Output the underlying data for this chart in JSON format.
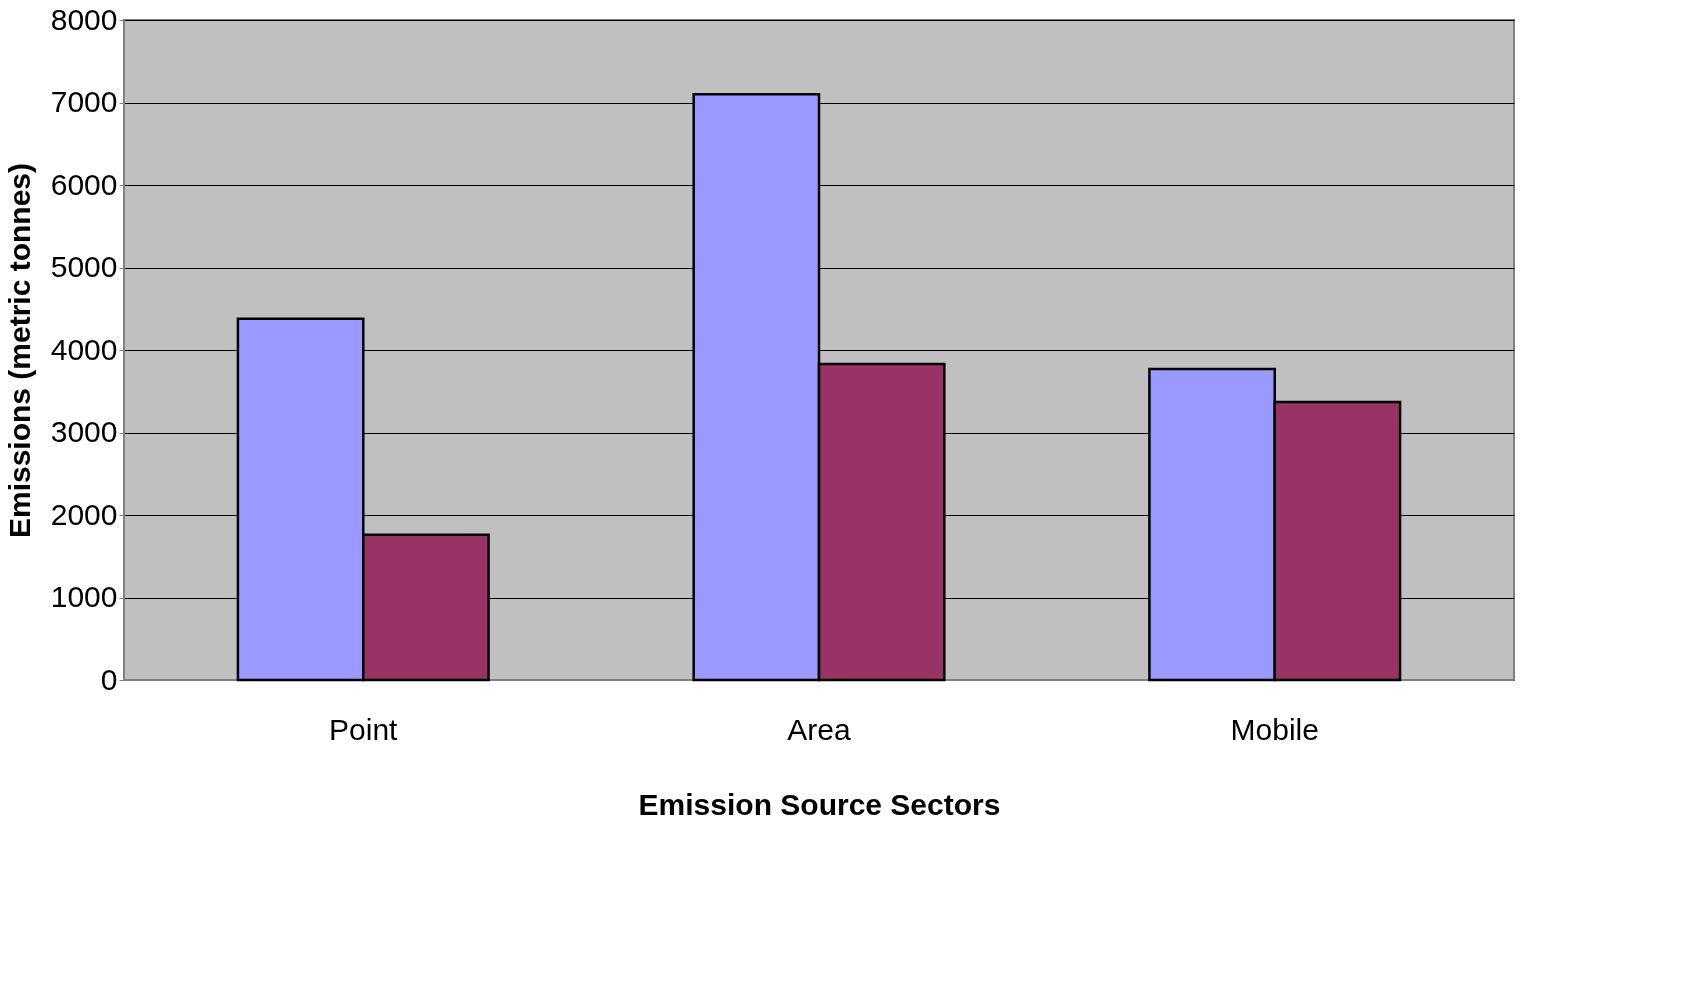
{
  "chart_data": {
    "type": "bar",
    "xlabel": "Emission Source Sectors",
    "ylabel": "Emissions (metric tonnes)",
    "categories": [
      "Point",
      "Area",
      "Mobile"
    ],
    "series": [
      {
        "color": "#9999ff",
        "values": [
          4380,
          7100,
          3770
        ]
      },
      {
        "color": "#993366",
        "values": [
          1760,
          3830,
          3370
        ]
      }
    ],
    "ylim": [
      0,
      8000
    ],
    "yticks": [
      0,
      1000,
      2000,
      3000,
      4000,
      5000,
      6000,
      7000,
      8000
    ],
    "grid": "y"
  }
}
